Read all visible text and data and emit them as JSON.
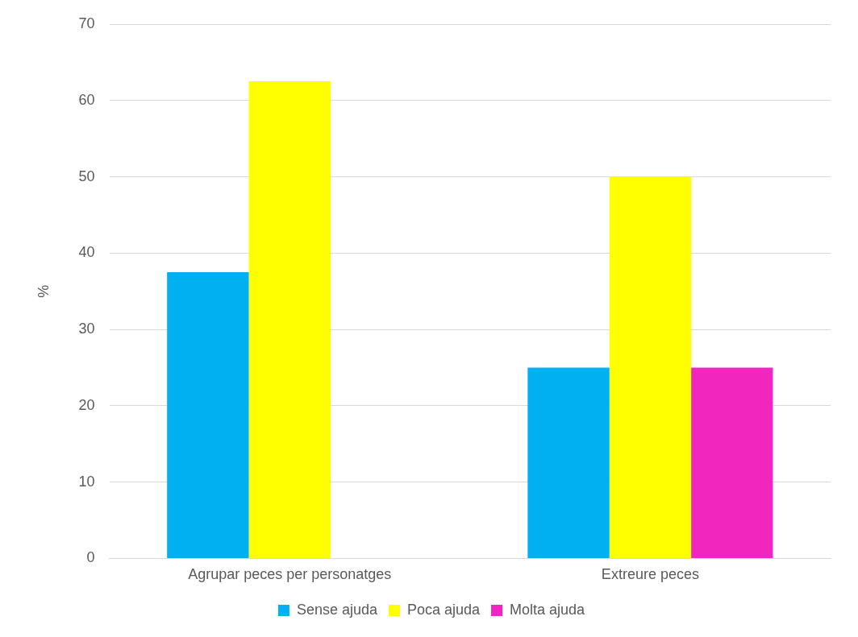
{
  "chart_data": {
    "type": "bar",
    "ylabel": "%",
    "categories": [
      "Agrupar peces per personatges",
      "Extreure peces"
    ],
    "series": [
      {
        "name": "Sense ajuda",
        "color": "#00b0f0",
        "values": [
          37.5,
          25
        ]
      },
      {
        "name": "Poca ajuda",
        "color": "#ffff00",
        "values": [
          62.5,
          50
        ]
      },
      {
        "name": "Molta ajuda",
        "color": "#f026be",
        "values": [
          0,
          25
        ]
      }
    ],
    "ylim": [
      0,
      70
    ],
    "yticks": [
      0,
      10,
      20,
      30,
      40,
      50,
      60,
      70
    ],
    "grid": "y",
    "legend": "bottom"
  }
}
